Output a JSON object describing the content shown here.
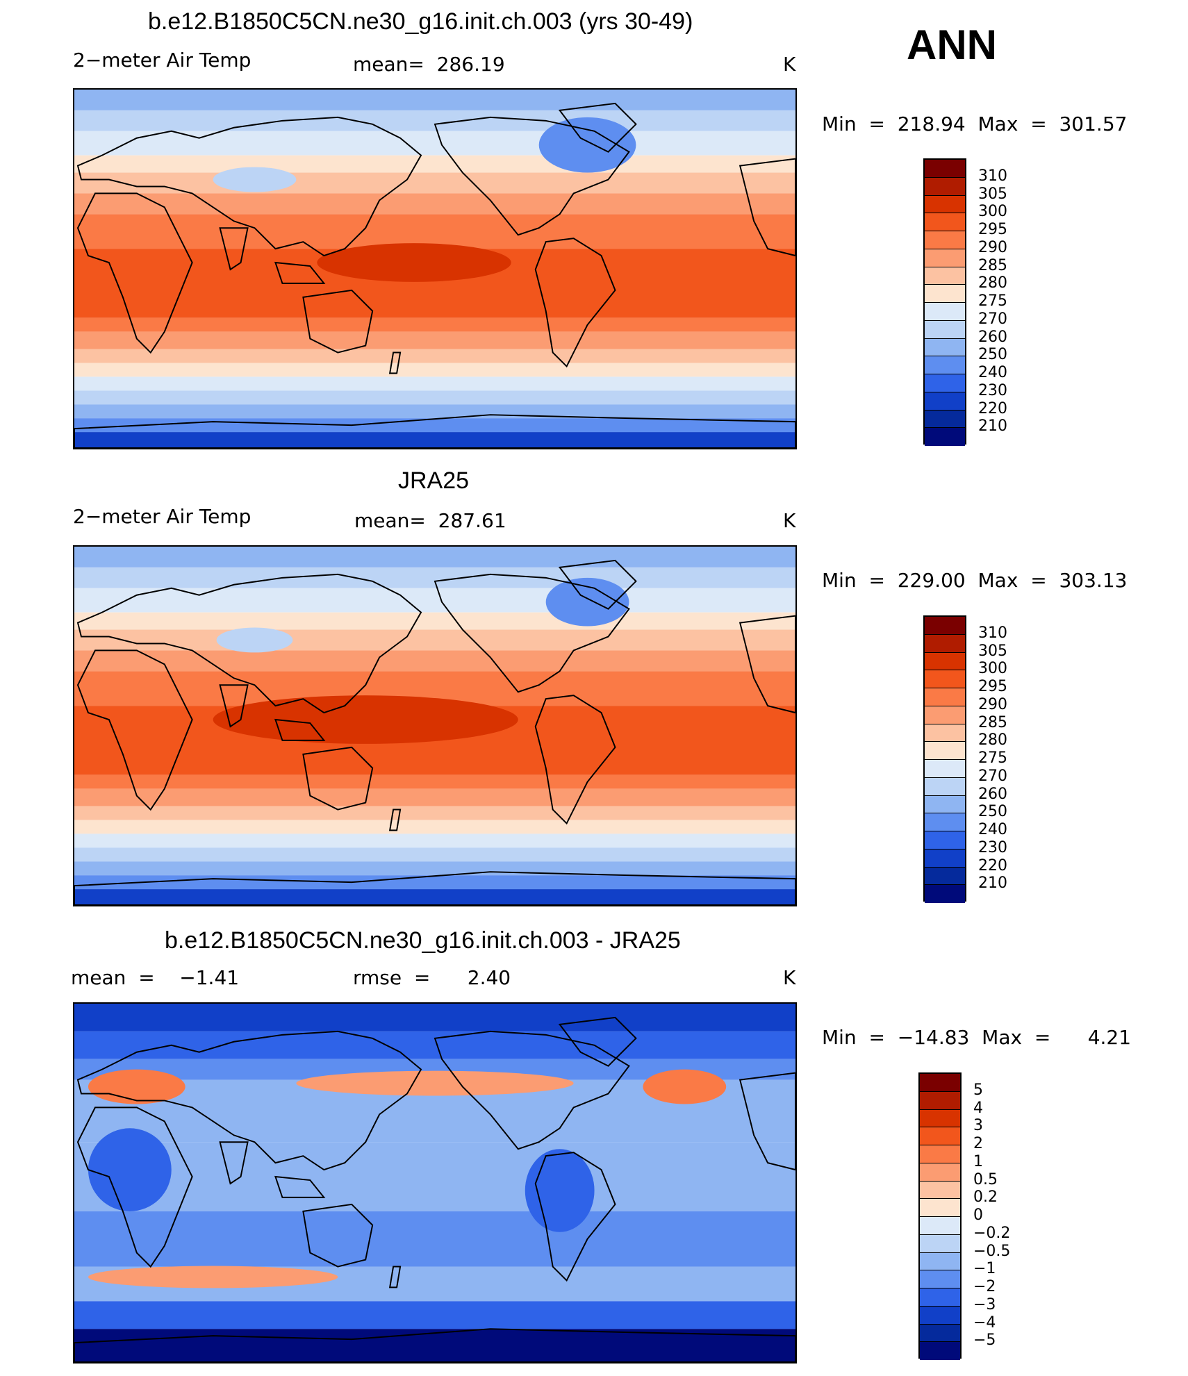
{
  "season": "ANN",
  "panels": [
    {
      "title": "b.e12.B1850C5CN.ne30_g16.init.ch.003 (yrs 30-49)",
      "left_label": "2−meter Air Temp",
      "center_label": "mean=  286.19",
      "units": "K",
      "range_label": "Min  =  218.94  Max  =  301.57",
      "colorbar_levels": [
        "310",
        "305",
        "300",
        "295",
        "290",
        "285",
        "280",
        "275",
        "270",
        "260",
        "250",
        "240",
        "230",
        "220",
        "210"
      ]
    },
    {
      "title": "JRA25",
      "left_label": "2−meter Air Temp",
      "center_label": "mean=  287.61",
      "units": "K",
      "range_label": "Min  =  229.00  Max  =  303.13",
      "colorbar_levels": [
        "310",
        "305",
        "300",
        "295",
        "290",
        "285",
        "280",
        "275",
        "270",
        "260",
        "250",
        "240",
        "230",
        "220",
        "210"
      ]
    },
    {
      "title": "b.e12.B1850C5CN.ne30_g16.init.ch.003 - JRA25",
      "left_label": "mean  =    −1.41",
      "center_label": "rmse  =      2.40",
      "units": "K",
      "range_label": "Min  =  −14.83  Max  =      4.21",
      "colorbar_levels": [
        "5",
        "4",
        "3",
        "2",
        "1",
        "0.5",
        "0.2",
        "0",
        "−0.2",
        "−0.5",
        "−1",
        "−2",
        "−3",
        "−4",
        "−5"
      ]
    }
  ],
  "colors": {
    "temp_scale": [
      "#7a0000",
      "#b01c00",
      "#d83300",
      "#f2561c",
      "#fa7a46",
      "#fb9c72",
      "#fcc2a2",
      "#fde4cf",
      "#dce9f8",
      "#bcd4f5",
      "#8fb5f2",
      "#5e8ef0",
      "#2f63e8",
      "#1140c8",
      "#052a9c",
      "#000a7a"
    ],
    "diff_scale": [
      "#7a0000",
      "#b01c00",
      "#d83300",
      "#f2561c",
      "#fa7a46",
      "#fb9c72",
      "#fcc2a2",
      "#fde4cf",
      "#dce9f8",
      "#bcd4f5",
      "#8fb5f2",
      "#5e8ef0",
      "#2f63e8",
      "#1140c8",
      "#052a9c",
      "#000a7a"
    ]
  }
}
